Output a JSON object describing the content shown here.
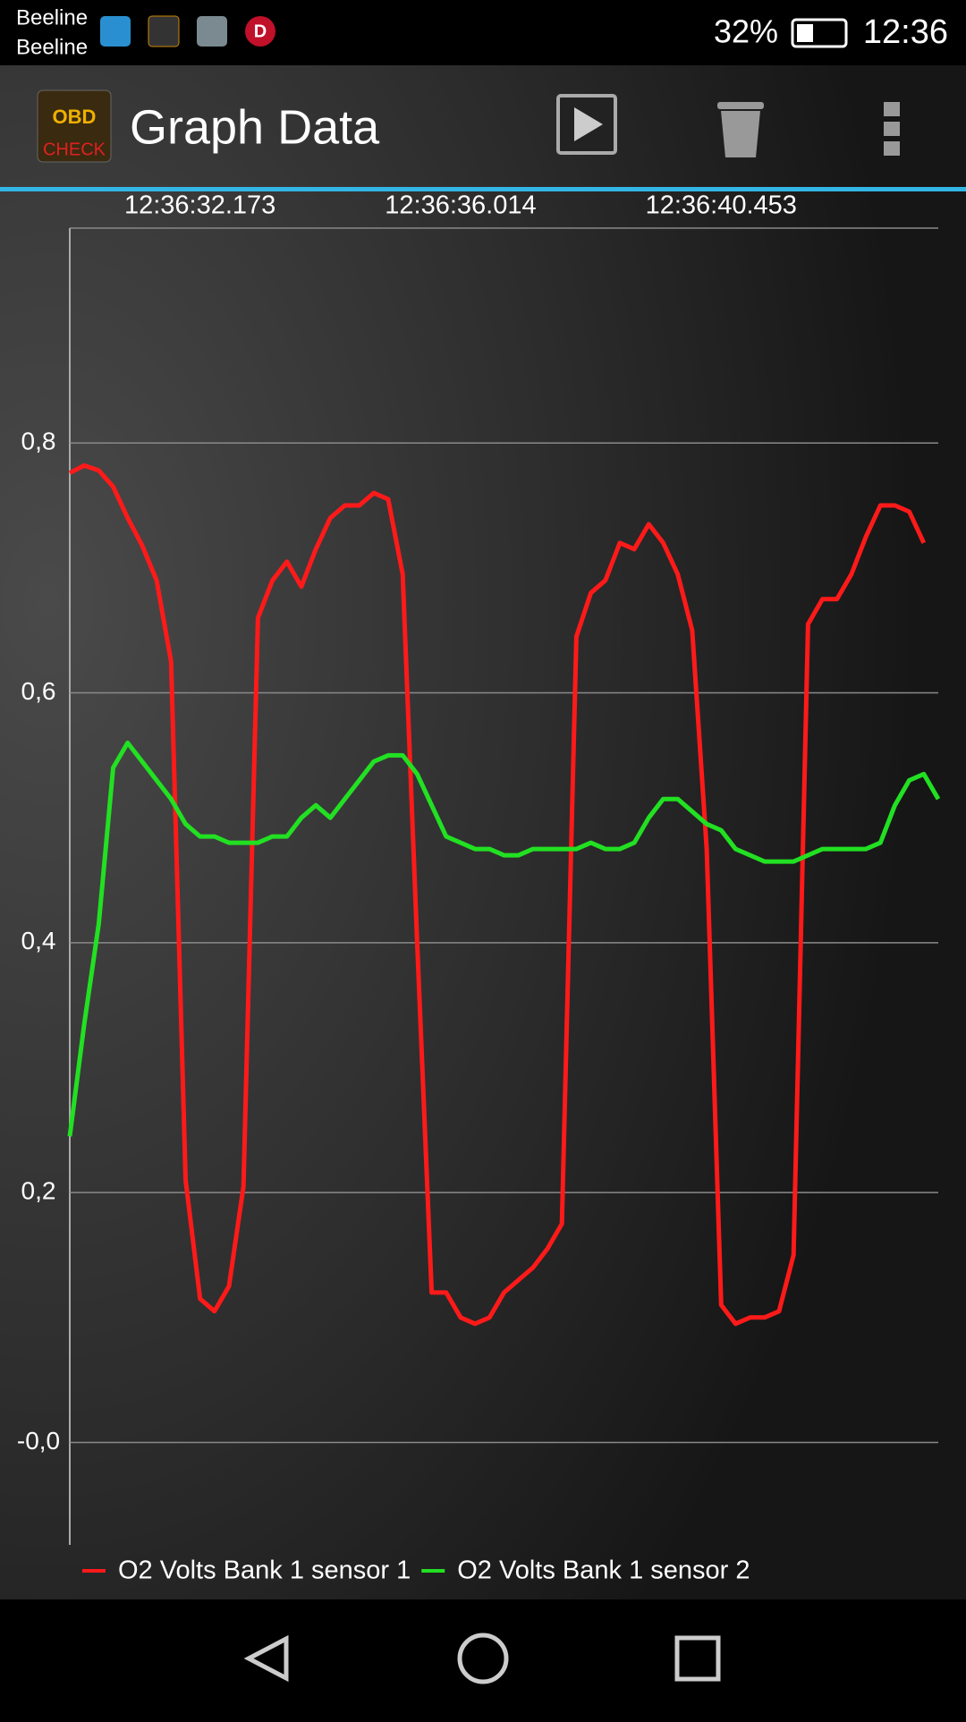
{
  "status_bar": {
    "carrier_1": "Beeline",
    "carrier_2": "Beeline",
    "badge": "D",
    "battery": "32%",
    "time": "12:36"
  },
  "app_bar": {
    "icon_text_1": "OBD",
    "icon_text_2": "CHECK",
    "title": "Graph Data"
  },
  "chart_data": {
    "type": "line",
    "categories": [
      null,
      null,
      null,
      null,
      null,
      null,
      null,
      null,
      null,
      "12:36:32.173",
      null,
      null,
      null,
      null,
      null,
      null,
      null,
      null,
      null,
      null,
      null,
      null,
      null,
      null,
      null,
      null,
      null,
      "12:36:36.014",
      null,
      null,
      null,
      null,
      null,
      null,
      null,
      null,
      null,
      null,
      null,
      null,
      null,
      null,
      null,
      null,
      null,
      "12:36:40.453",
      null,
      null,
      null,
      null,
      null,
      null,
      null,
      null,
      null,
      null,
      null,
      null,
      null,
      null,
      null
    ],
    "series": [
      {
        "name": "O2 Volts Bank 1 sensor 1",
        "color": "#ff1a1a",
        "values": [
          0.776,
          0.782,
          0.778,
          0.765,
          0.74,
          0.718,
          0.69,
          0.625,
          0.21,
          0.115,
          0.105,
          0.125,
          0.205,
          0.66,
          0.69,
          0.705,
          0.685,
          0.715,
          0.74,
          0.75,
          0.75,
          0.76,
          0.755,
          0.695,
          0.4,
          0.12,
          0.12,
          0.1,
          0.095,
          0.1,
          0.12,
          0.13,
          0.14,
          0.155,
          0.175,
          0.645,
          0.68,
          0.69,
          0.72,
          0.715,
          0.735,
          0.72,
          0.695,
          0.65,
          0.475,
          0.11,
          0.095,
          0.1,
          0.1,
          0.105,
          0.15,
          0.655,
          0.675,
          0.675,
          0.695,
          0.725,
          0.75,
          0.75,
          0.745,
          0.72,
          null
        ]
      },
      {
        "name": "O2 Volts Bank 1 sensor 2",
        "color": "#22e022",
        "values": [
          0.245,
          0.335,
          0.415,
          0.54,
          0.56,
          0.545,
          0.53,
          0.515,
          0.495,
          0.485,
          0.485,
          0.48,
          0.48,
          0.48,
          0.485,
          0.485,
          0.5,
          0.51,
          0.5,
          0.515,
          0.53,
          0.545,
          0.55,
          0.55,
          0.535,
          0.51,
          0.485,
          0.48,
          0.475,
          0.475,
          0.47,
          0.47,
          0.475,
          0.475,
          0.475,
          0.475,
          0.48,
          0.475,
          0.475,
          0.48,
          0.5,
          0.515,
          0.515,
          0.505,
          0.495,
          0.49,
          0.475,
          0.47,
          0.465,
          0.465,
          0.465,
          0.47,
          0.475,
          0.475,
          0.475,
          0.475,
          0.48,
          0.51,
          0.53,
          0.535,
          0.515
        ]
      }
    ],
    "ylim": [
      -0.082,
      0.972
    ],
    "yticks": [
      {
        "value": 0,
        "label": "-0,0"
      },
      {
        "value": 0.2,
        "label": "0,2"
      },
      {
        "value": 0.4,
        "label": "0,4"
      },
      {
        "value": 0.6,
        "label": "0,6"
      },
      {
        "value": 0.8,
        "label": "0,8"
      }
    ],
    "grid": true
  }
}
